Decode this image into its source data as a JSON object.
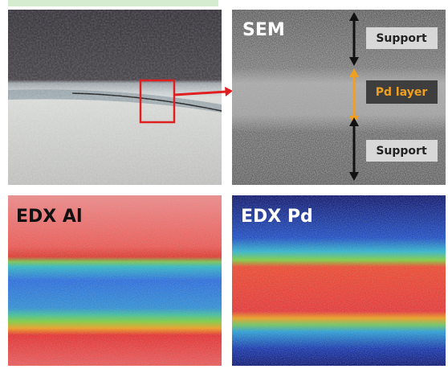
{
  "sem": {
    "label": "SEM",
    "annotations": [
      "Support",
      "Pd layer",
      "Support"
    ]
  },
  "edx_al": {
    "label": "EDX Al"
  },
  "edx_pd": {
    "label": "EDX Pd"
  }
}
